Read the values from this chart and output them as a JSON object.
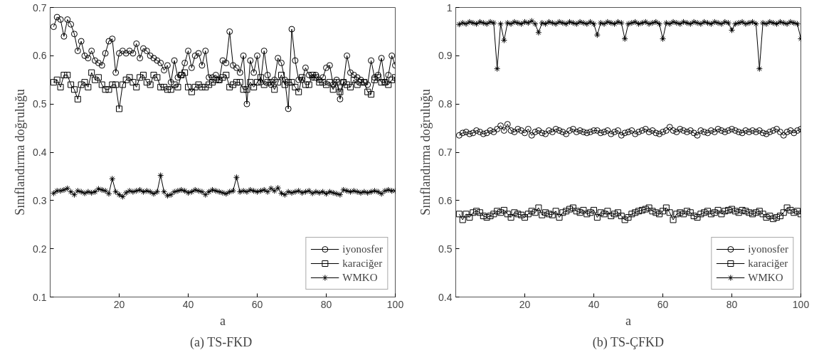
{
  "chart_data": [
    {
      "type": "line",
      "title": "(a)  TS-FKD",
      "xlabel": "a",
      "ylabel": "Sınıflandırma doğruluğu",
      "xlim": [
        0,
        100
      ],
      "xticks": [
        20,
        40,
        60,
        80,
        100
      ],
      "ylim": [
        0.1,
        0.7
      ],
      "yticks": [
        0.1,
        0.2,
        0.3,
        0.4,
        0.5,
        0.6,
        0.7
      ],
      "grid": false,
      "legend": "bottom right",
      "line_style": "solid",
      "x": [
        1,
        2,
        3,
        4,
        5,
        6,
        7,
        8,
        9,
        10,
        11,
        12,
        13,
        14,
        15,
        16,
        17,
        18,
        19,
        20,
        21,
        22,
        23,
        24,
        25,
        26,
        27,
        28,
        29,
        30,
        31,
        32,
        33,
        34,
        35,
        36,
        37,
        38,
        39,
        40,
        41,
        42,
        43,
        44,
        45,
        46,
        47,
        48,
        49,
        50,
        51,
        52,
        53,
        54,
        55,
        56,
        57,
        58,
        59,
        60,
        61,
        62,
        63,
        64,
        65,
        66,
        67,
        68,
        69,
        70,
        71,
        72,
        73,
        74,
        75,
        76,
        77,
        78,
        79,
        80,
        81,
        82,
        83,
        84,
        85,
        86,
        87,
        88,
        89,
        90,
        91,
        92,
        93,
        94,
        95,
        96,
        97,
        98,
        99,
        100
      ],
      "series": [
        {
          "name": "iyonosfer",
          "color": "#000000",
          "marker": "circle",
          "values": [
            0.66,
            0.68,
            0.675,
            0.64,
            0.675,
            0.665,
            0.645,
            0.61,
            0.63,
            0.6,
            0.595,
            0.61,
            0.59,
            0.585,
            0.58,
            0.605,
            0.63,
            0.635,
            0.565,
            0.605,
            0.61,
            0.605,
            0.61,
            0.605,
            0.625,
            0.595,
            0.615,
            0.61,
            0.6,
            0.595,
            0.59,
            0.585,
            0.57,
            0.58,
            0.545,
            0.59,
            0.555,
            0.56,
            0.585,
            0.61,
            0.575,
            0.6,
            0.605,
            0.58,
            0.61,
            0.555,
            0.555,
            0.56,
            0.55,
            0.59,
            0.585,
            0.65,
            0.58,
            0.575,
            0.565,
            0.6,
            0.5,
            0.59,
            0.565,
            0.6,
            0.545,
            0.61,
            0.56,
            0.54,
            0.55,
            0.595,
            0.585,
            0.55,
            0.49,
            0.655,
            0.59,
            0.55,
            0.55,
            0.575,
            0.56,
            0.555,
            0.56,
            0.55,
            0.555,
            0.575,
            0.58,
            0.54,
            0.55,
            0.51,
            0.545,
            0.6,
            0.565,
            0.56,
            0.555,
            0.55,
            0.545,
            0.54,
            0.59,
            0.555,
            0.56,
            0.595,
            0.545,
            0.56,
            0.6,
            0.58
          ]
        },
        {
          "name": "karaciğer",
          "color": "#000000",
          "marker": "square",
          "values": [
            0.545,
            0.55,
            0.535,
            0.56,
            0.56,
            0.54,
            0.53,
            0.51,
            0.54,
            0.545,
            0.535,
            0.565,
            0.55,
            0.555,
            0.54,
            0.53,
            0.53,
            0.54,
            0.54,
            0.49,
            0.54,
            0.55,
            0.555,
            0.545,
            0.535,
            0.555,
            0.56,
            0.545,
            0.54,
            0.56,
            0.555,
            0.535,
            0.535,
            0.53,
            0.53,
            0.54,
            0.535,
            0.56,
            0.565,
            0.535,
            0.525,
            0.535,
            0.54,
            0.535,
            0.535,
            0.54,
            0.545,
            0.55,
            0.55,
            0.555,
            0.56,
            0.535,
            0.54,
            0.545,
            0.545,
            0.53,
            0.53,
            0.545,
            0.535,
            0.545,
            0.555,
            0.54,
            0.545,
            0.545,
            0.53,
            0.545,
            0.56,
            0.54,
            0.545,
            0.545,
            0.535,
            0.525,
            0.555,
            0.54,
            0.54,
            0.56,
            0.555,
            0.545,
            0.545,
            0.54,
            0.545,
            0.53,
            0.545,
            0.525,
            0.545,
            0.54,
            0.535,
            0.55,
            0.54,
            0.545,
            0.545,
            0.525,
            0.52,
            0.55,
            0.555,
            0.545,
            0.545,
            0.54,
            0.55,
            0.555
          ]
        },
        {
          "name": "WMKO",
          "color": "#000000",
          "marker": "cross",
          "values": [
            0.315,
            0.32,
            0.32,
            0.322,
            0.325,
            0.318,
            0.312,
            0.32,
            0.318,
            0.315,
            0.318,
            0.316,
            0.318,
            0.324,
            0.322,
            0.32,
            0.314,
            0.345,
            0.318,
            0.312,
            0.308,
            0.316,
            0.32,
            0.318,
            0.32,
            0.322,
            0.318,
            0.32,
            0.318,
            0.314,
            0.318,
            0.352,
            0.318,
            0.31,
            0.312,
            0.318,
            0.32,
            0.322,
            0.32,
            0.316,
            0.318,
            0.322,
            0.32,
            0.318,
            0.312,
            0.318,
            0.322,
            0.32,
            0.318,
            0.316,
            0.314,
            0.318,
            0.32,
            0.348,
            0.318,
            0.32,
            0.318,
            0.322,
            0.32,
            0.318,
            0.32,
            0.322,
            0.318,
            0.325,
            0.32,
            0.326,
            0.315,
            0.312,
            0.318,
            0.316,
            0.318,
            0.32,
            0.316,
            0.318,
            0.32,
            0.315,
            0.318,
            0.316,
            0.318,
            0.314,
            0.318,
            0.316,
            0.314,
            0.312,
            0.322,
            0.32,
            0.318,
            0.32,
            0.318,
            0.316,
            0.318,
            0.316,
            0.318,
            0.32,
            0.318,
            0.314,
            0.32,
            0.322,
            0.32,
            0.32
          ]
        }
      ]
    },
    {
      "type": "line",
      "title": "(b) TS-ÇFKD",
      "xlabel": "a",
      "ylabel": "Sınıflandırma doğruluğu",
      "xlim": [
        0,
        100
      ],
      "xticks": [
        20,
        40,
        60,
        80,
        100
      ],
      "ylim": [
        0.4,
        1
      ],
      "yticks": [
        0.4,
        0.5,
        0.6,
        0.7,
        0.8,
        0.9,
        1
      ],
      "grid": false,
      "legend": "bottom right",
      "line_style": "solid",
      "x": [
        1,
        2,
        3,
        4,
        5,
        6,
        7,
        8,
        9,
        10,
        11,
        12,
        13,
        14,
        15,
        16,
        17,
        18,
        19,
        20,
        21,
        22,
        23,
        24,
        25,
        26,
        27,
        28,
        29,
        30,
        31,
        32,
        33,
        34,
        35,
        36,
        37,
        38,
        39,
        40,
        41,
        42,
        43,
        44,
        45,
        46,
        47,
        48,
        49,
        50,
        51,
        52,
        53,
        54,
        55,
        56,
        57,
        58,
        59,
        60,
        61,
        62,
        63,
        64,
        65,
        66,
        67,
        68,
        69,
        70,
        71,
        72,
        73,
        74,
        75,
        76,
        77,
        78,
        79,
        80,
        81,
        82,
        83,
        84,
        85,
        86,
        87,
        88,
        89,
        90,
        91,
        92,
        93,
        94,
        95,
        96,
        97,
        98,
        99,
        100
      ],
      "series": [
        {
          "name": "iyonosfer",
          "color": "#000000",
          "marker": "circle",
          "values": [
            0.735,
            0.74,
            0.742,
            0.738,
            0.74,
            0.745,
            0.742,
            0.738,
            0.74,
            0.745,
            0.742,
            0.748,
            0.755,
            0.745,
            0.758,
            0.745,
            0.742,
            0.748,
            0.745,
            0.74,
            0.748,
            0.735,
            0.742,
            0.745,
            0.74,
            0.738,
            0.745,
            0.742,
            0.748,
            0.745,
            0.742,
            0.738,
            0.745,
            0.748,
            0.742,
            0.745,
            0.742,
            0.74,
            0.742,
            0.745,
            0.745,
            0.74,
            0.742,
            0.745,
            0.738,
            0.742,
            0.745,
            0.735,
            0.74,
            0.742,
            0.745,
            0.738,
            0.742,
            0.745,
            0.748,
            0.742,
            0.745,
            0.74,
            0.738,
            0.742,
            0.745,
            0.752,
            0.745,
            0.742,
            0.748,
            0.745,
            0.742,
            0.745,
            0.74,
            0.735,
            0.745,
            0.742,
            0.74,
            0.745,
            0.742,
            0.748,
            0.745,
            0.742,
            0.745,
            0.748,
            0.745,
            0.742,
            0.74,
            0.745,
            0.742,
            0.745,
            0.742,
            0.745,
            0.74,
            0.738,
            0.742,
            0.745,
            0.748,
            0.742,
            0.735,
            0.742,
            0.745,
            0.74,
            0.745,
            0.748
          ]
        },
        {
          "name": "karaciğer",
          "color": "#000000",
          "marker": "square",
          "values": [
            0.572,
            0.56,
            0.572,
            0.565,
            0.575,
            0.578,
            0.575,
            0.568,
            0.565,
            0.568,
            0.572,
            0.578,
            0.575,
            0.58,
            0.572,
            0.565,
            0.575,
            0.572,
            0.57,
            0.565,
            0.572,
            0.578,
            0.575,
            0.585,
            0.57,
            0.575,
            0.572,
            0.57,
            0.578,
            0.565,
            0.575,
            0.578,
            0.582,
            0.585,
            0.578,
            0.575,
            0.58,
            0.572,
            0.575,
            0.58,
            0.565,
            0.575,
            0.572,
            0.578,
            0.568,
            0.572,
            0.575,
            0.568,
            0.56,
            0.565,
            0.572,
            0.575,
            0.578,
            0.58,
            0.582,
            0.585,
            0.578,
            0.575,
            0.572,
            0.578,
            0.585,
            0.575,
            0.56,
            0.572,
            0.575,
            0.572,
            0.578,
            0.575,
            0.568,
            0.565,
            0.572,
            0.575,
            0.578,
            0.572,
            0.575,
            0.58,
            0.572,
            0.578,
            0.58,
            0.582,
            0.578,
            0.575,
            0.58,
            0.578,
            0.575,
            0.572,
            0.575,
            0.578,
            0.572,
            0.565,
            0.568,
            0.562,
            0.565,
            0.568,
            0.575,
            0.585,
            0.58,
            0.575,
            0.578,
            0.572
          ]
        },
        {
          "name": "WMKO",
          "color": "#000000",
          "marker": "cross",
          "values": [
            0.965,
            0.968,
            0.966,
            0.97,
            0.968,
            0.966,
            0.97,
            0.968,
            0.966,
            0.97,
            0.968,
            0.873,
            0.966,
            0.932,
            0.968,
            0.966,
            0.97,
            0.968,
            0.966,
            0.97,
            0.968,
            0.972,
            0.966,
            0.948,
            0.968,
            0.966,
            0.97,
            0.968,
            0.966,
            0.97,
            0.968,
            0.966,
            0.97,
            0.968,
            0.966,
            0.97,
            0.968,
            0.966,
            0.97,
            0.966,
            0.943,
            0.968,
            0.966,
            0.97,
            0.968,
            0.966,
            0.97,
            0.968,
            0.935,
            0.966,
            0.968,
            0.97,
            0.966,
            0.968,
            0.97,
            0.966,
            0.968,
            0.97,
            0.966,
            0.935,
            0.968,
            0.966,
            0.97,
            0.968,
            0.966,
            0.97,
            0.968,
            0.966,
            0.97,
            0.968,
            0.966,
            0.97,
            0.968,
            0.966,
            0.97,
            0.968,
            0.966,
            0.97,
            0.968,
            0.953,
            0.966,
            0.968,
            0.97,
            0.966,
            0.968,
            0.97,
            0.966,
            0.873,
            0.968,
            0.966,
            0.97,
            0.968,
            0.966,
            0.97,
            0.968,
            0.966,
            0.97,
            0.968,
            0.966,
            0.935
          ]
        }
      ]
    }
  ]
}
